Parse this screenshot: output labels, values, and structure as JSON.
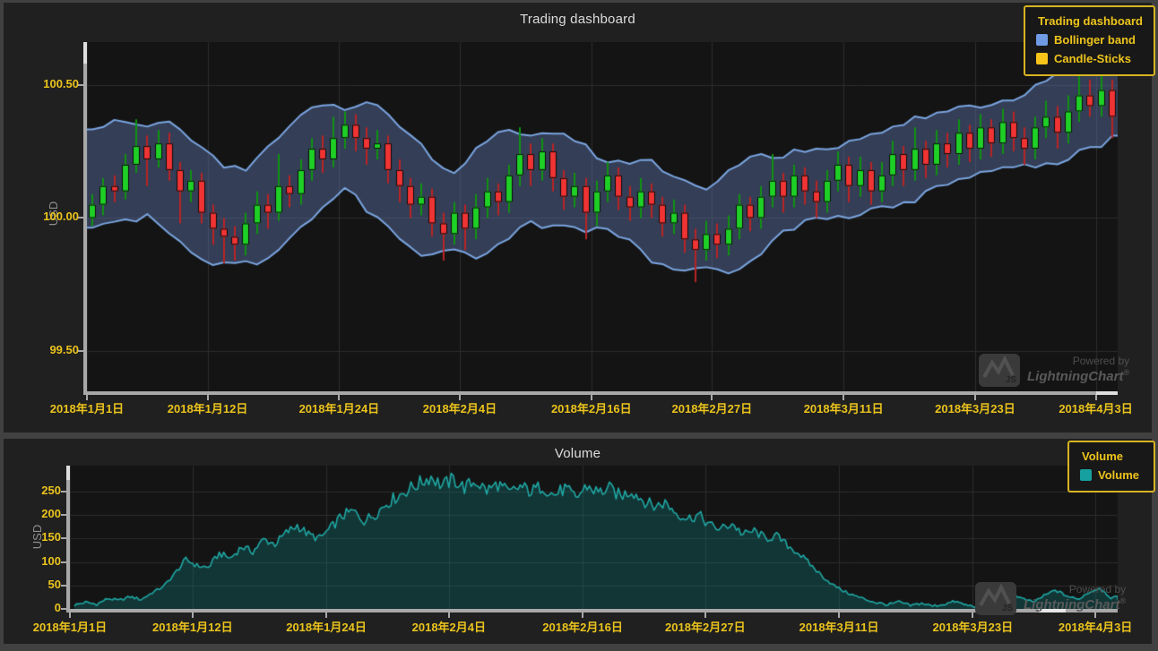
{
  "app": {
    "background": "#414141",
    "panel_background": "#202020",
    "plot_background": "#141414",
    "grid_color": "#2c2c2c",
    "axis_color": "#a8a8a8",
    "axis_nib_color": "#dedede",
    "tick_label_color": "#eac31d",
    "title_color": "#dcdcdc",
    "axis_title_color": "#8f8f8f"
  },
  "top_chart": {
    "title": "Trading dashboard",
    "y_axis_title": "USD",
    "ylim": [
      99.35,
      100.66
    ],
    "y_ticks": [
      {
        "label": "100.50",
        "value": 100.5
      },
      {
        "label": "100.00",
        "value": 100.0
      },
      {
        "label": "99.50",
        "value": 99.5
      }
    ],
    "x_ticks": [
      {
        "label": "2018年1月1日",
        "day": 0
      },
      {
        "label": "2018年1月12日",
        "day": 11
      },
      {
        "label": "2018年1月24日",
        "day": 23
      },
      {
        "label": "2018年2月4日",
        "day": 34
      },
      {
        "label": "2018年2月16日",
        "day": 46
      },
      {
        "label": "2018年2月27日",
        "day": 57
      },
      {
        "label": "2018年3月11日",
        "day": 69
      },
      {
        "label": "2018年3月23日",
        "day": 81
      },
      {
        "label": "2018年4月3日",
        "day": 92
      }
    ],
    "legend": {
      "title": "Trading dashboard",
      "items": [
        {
          "label": "Bollinger band",
          "color": "#6f9be4"
        },
        {
          "label": "Candle-Sticks",
          "color": "#f7c51a"
        }
      ]
    }
  },
  "bottom_chart": {
    "title": "Volume",
    "y_axis_title": "USD",
    "ylim": [
      0,
      305
    ],
    "y_ticks": [
      {
        "label": "250",
        "value": 250
      },
      {
        "label": "200",
        "value": 200
      },
      {
        "label": "150",
        "value": 150
      },
      {
        "label": "100",
        "value": 100
      },
      {
        "label": "50",
        "value": 50
      },
      {
        "label": "0",
        "value": 0
      }
    ],
    "x_ticks": [
      {
        "label": "2018年1月1日",
        "day": 0
      },
      {
        "label": "2018年1月12日",
        "day": 11
      },
      {
        "label": "2018年1月24日",
        "day": 23
      },
      {
        "label": "2018年2月4日",
        "day": 34
      },
      {
        "label": "2018年2月16日",
        "day": 46
      },
      {
        "label": "2018年2月27日",
        "day": 57
      },
      {
        "label": "2018年3月11日",
        "day": 69
      },
      {
        "label": "2018年3月23日",
        "day": 81
      },
      {
        "label": "2018年4月3日",
        "day": 92
      }
    ],
    "legend": {
      "title": "Volume",
      "items": [
        {
          "label": "Volume",
          "color": "#17a0a0"
        }
      ]
    }
  },
  "watermark": {
    "powered_by": "Powered by",
    "brand": "LightningChart",
    "registered": "®",
    "logo_label": "JS"
  },
  "chart_data": [
    {
      "type": "candlestick",
      "title": "Trading dashboard",
      "x_unit": "day",
      "start_date": "2018-01-01",
      "y_unit": "USD",
      "bull_color": "#1ed026",
      "bear_color": "#f03333",
      "bull_wick_color": "#0f9212",
      "bear_wick_color": "#b82424",
      "body_outline_color": "#0a0a0a",
      "bollinger": {
        "window": 9,
        "multiplier": 1.6,
        "base_half_width": 0.06,
        "min_half_width": 0.11,
        "max_half_width": 0.21,
        "fill_color": "rgba(100,125,185,0.40)",
        "edge_color": "#7aa5e0"
      },
      "ohlc": [
        [
          100.0,
          100.09,
          99.97,
          100.05
        ],
        [
          100.05,
          100.15,
          100.01,
          100.12
        ],
        [
          100.12,
          100.16,
          100.06,
          100.1
        ],
        [
          100.1,
          100.24,
          100.07,
          100.2
        ],
        [
          100.2,
          100.37,
          100.17,
          100.27
        ],
        [
          100.27,
          100.31,
          100.12,
          100.22
        ],
        [
          100.22,
          100.33,
          100.19,
          100.28
        ],
        [
          100.28,
          100.32,
          100.14,
          100.18
        ],
        [
          100.18,
          100.21,
          99.98,
          100.1
        ],
        [
          100.1,
          100.18,
          100.06,
          100.14
        ],
        [
          100.14,
          100.17,
          99.98,
          100.02
        ],
        [
          100.02,
          100.05,
          99.9,
          99.96
        ],
        [
          99.96,
          100.0,
          99.83,
          99.93
        ],
        [
          99.93,
          99.97,
          99.84,
          99.9
        ],
        [
          99.9,
          100.02,
          99.86,
          99.98
        ],
        [
          99.98,
          100.1,
          99.94,
          100.05
        ],
        [
          100.05,
          100.09,
          99.96,
          100.02
        ],
        [
          100.02,
          100.24,
          99.99,
          100.12
        ],
        [
          100.12,
          100.16,
          100.04,
          100.09
        ],
        [
          100.09,
          100.22,
          100.05,
          100.18
        ],
        [
          100.18,
          100.3,
          100.14,
          100.26
        ],
        [
          100.26,
          100.31,
          100.17,
          100.22
        ],
        [
          100.22,
          100.38,
          100.19,
          100.3
        ],
        [
          100.3,
          100.4,
          100.26,
          100.35
        ],
        [
          100.35,
          100.39,
          100.25,
          100.3
        ],
        [
          100.3,
          100.34,
          100.2,
          100.26
        ],
        [
          100.26,
          100.33,
          100.22,
          100.28
        ],
        [
          100.28,
          100.31,
          100.13,
          100.18
        ],
        [
          100.18,
          100.22,
          100.06,
          100.12
        ],
        [
          100.12,
          100.15,
          100.0,
          100.05
        ],
        [
          100.05,
          100.13,
          100.01,
          100.08
        ],
        [
          100.08,
          100.11,
          99.93,
          99.98
        ],
        [
          99.98,
          100.02,
          99.84,
          99.94
        ],
        [
          99.94,
          100.06,
          99.9,
          100.02
        ],
        [
          100.02,
          100.05,
          99.88,
          99.96
        ],
        [
          99.96,
          100.09,
          99.92,
          100.04
        ],
        [
          100.04,
          100.15,
          100.0,
          100.1
        ],
        [
          100.1,
          100.13,
          100.01,
          100.06
        ],
        [
          100.06,
          100.2,
          100.02,
          100.16
        ],
        [
          100.16,
          100.34,
          100.12,
          100.24
        ],
        [
          100.24,
          100.28,
          100.12,
          100.18
        ],
        [
          100.18,
          100.3,
          100.14,
          100.25
        ],
        [
          100.25,
          100.28,
          100.1,
          100.15
        ],
        [
          100.15,
          100.18,
          100.03,
          100.08
        ],
        [
          100.08,
          100.17,
          100.04,
          100.12
        ],
        [
          100.12,
          100.15,
          99.92,
          100.02
        ],
        [
          100.02,
          100.14,
          99.97,
          100.1
        ],
        [
          100.1,
          100.21,
          100.06,
          100.16
        ],
        [
          100.16,
          100.19,
          100.03,
          100.08
        ],
        [
          100.08,
          100.12,
          99.99,
          100.04
        ],
        [
          100.04,
          100.15,
          100.0,
          100.1
        ],
        [
          100.1,
          100.13,
          100.0,
          100.05
        ],
        [
          100.05,
          100.08,
          99.93,
          99.98
        ],
        [
          99.98,
          100.07,
          99.94,
          100.02
        ],
        [
          100.02,
          100.05,
          99.87,
          99.92
        ],
        [
          99.92,
          99.96,
          99.76,
          99.88
        ],
        [
          99.88,
          99.99,
          99.84,
          99.94
        ],
        [
          99.94,
          99.98,
          99.85,
          99.9
        ],
        [
          99.9,
          100.01,
          99.86,
          99.96
        ],
        [
          99.96,
          100.09,
          99.92,
          100.05
        ],
        [
          100.05,
          100.08,
          99.95,
          100.0
        ],
        [
          100.0,
          100.12,
          99.96,
          100.08
        ],
        [
          100.08,
          100.24,
          100.04,
          100.14
        ],
        [
          100.14,
          100.17,
          100.02,
          100.08
        ],
        [
          100.08,
          100.2,
          100.04,
          100.16
        ],
        [
          100.16,
          100.19,
          100.05,
          100.1
        ],
        [
          100.1,
          100.14,
          100.0,
          100.06
        ],
        [
          100.06,
          100.18,
          100.02,
          100.14
        ],
        [
          100.14,
          100.25,
          100.1,
          100.2
        ],
        [
          100.2,
          100.23,
          100.06,
          100.12
        ],
        [
          100.12,
          100.23,
          100.08,
          100.18
        ],
        [
          100.18,
          100.21,
          100.05,
          100.1
        ],
        [
          100.1,
          100.21,
          100.06,
          100.16
        ],
        [
          100.16,
          100.29,
          100.12,
          100.24
        ],
        [
          100.24,
          100.27,
          100.12,
          100.18
        ],
        [
          100.18,
          100.34,
          100.14,
          100.26
        ],
        [
          100.26,
          100.29,
          100.15,
          100.2
        ],
        [
          100.2,
          100.33,
          100.16,
          100.28
        ],
        [
          100.28,
          100.32,
          100.19,
          100.24
        ],
        [
          100.24,
          100.37,
          100.2,
          100.32
        ],
        [
          100.32,
          100.35,
          100.21,
          100.26
        ],
        [
          100.26,
          100.39,
          100.22,
          100.34
        ],
        [
          100.34,
          100.37,
          100.23,
          100.28
        ],
        [
          100.28,
          100.41,
          100.24,
          100.36
        ],
        [
          100.36,
          100.4,
          100.25,
          100.3
        ],
        [
          100.3,
          100.34,
          100.2,
          100.26
        ],
        [
          100.26,
          100.38,
          100.22,
          100.34
        ],
        [
          100.34,
          100.44,
          100.3,
          100.38
        ],
        [
          100.38,
          100.42,
          100.26,
          100.32
        ],
        [
          100.32,
          100.46,
          100.28,
          100.4
        ],
        [
          100.4,
          100.58,
          100.36,
          100.46
        ],
        [
          100.46,
          100.52,
          100.38,
          100.42
        ],
        [
          100.42,
          100.55,
          100.38,
          100.48
        ],
        [
          100.48,
          100.52,
          100.3,
          100.38
        ]
      ]
    },
    {
      "type": "area",
      "title": "Volume",
      "x_unit": "day",
      "start_date": "2018-01-01",
      "y_unit": "USD",
      "line_color": "#1fa8a4",
      "fill_color": "rgba(16,125,125,0.33)",
      "points_per_day": 5,
      "jitter_ratio": 0.06,
      "jitter_min": 3,
      "daily_values": [
        8,
        14,
        10,
        22,
        18,
        26,
        20,
        35,
        48,
        75,
        105,
        92,
        88,
        118,
        108,
        132,
        122,
        148,
        138,
        162,
        178,
        158,
        150,
        172,
        198,
        208,
        188,
        202,
        225,
        240,
        255,
        268,
        282,
        262,
        276,
        258,
        272,
        252,
        266,
        246,
        260,
        250,
        262,
        242,
        256,
        236,
        262,
        248,
        256,
        240,
        252,
        232,
        218,
        226,
        205,
        192,
        200,
        178,
        170,
        182,
        158,
        166,
        150,
        155,
        135,
        118,
        95,
        72,
        52,
        38,
        28,
        20,
        13,
        9,
        15,
        7,
        12,
        6,
        10,
        16,
        8,
        5,
        12,
        24,
        34,
        22,
        14,
        28,
        40,
        28,
        20,
        35,
        45,
        24
      ]
    }
  ]
}
